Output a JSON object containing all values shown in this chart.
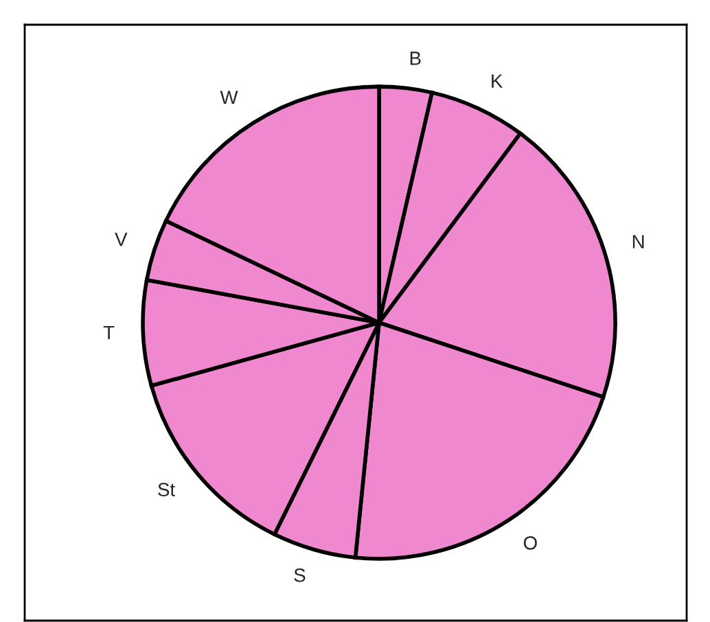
{
  "chart_data": {
    "type": "pie",
    "categories": [
      "B",
      "K",
      "N",
      "O",
      "S",
      "St",
      "T",
      "V",
      "W"
    ],
    "values": [
      3.6,
      6.6,
      19.9,
      21.5,
      5.7,
      13.4,
      7.2,
      4.2,
      17.9
    ],
    "colors": [
      "#f088d0",
      "#f088d0",
      "#f088d0",
      "#f088d0",
      "#f088d0",
      "#f088d0",
      "#f088d0",
      "#f088d0",
      "#f088d0"
    ]
  }
}
